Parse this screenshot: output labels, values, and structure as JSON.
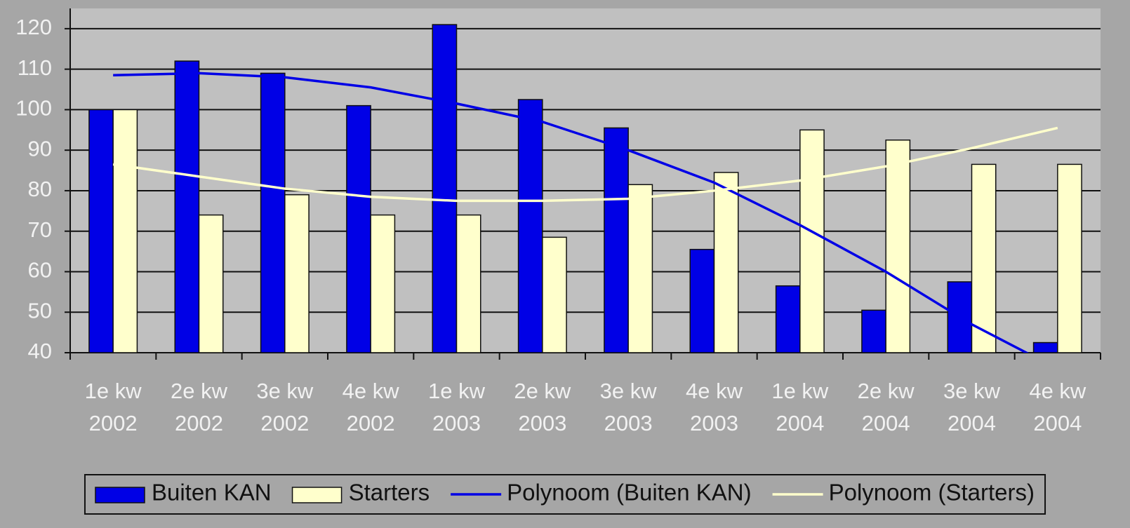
{
  "chart_data": {
    "type": "bar",
    "categories": [
      [
        "1e kw",
        "2002"
      ],
      [
        "2e kw",
        "2002"
      ],
      [
        "3e kw",
        "2002"
      ],
      [
        "4e kw",
        "2002"
      ],
      [
        "1e kw",
        "2003"
      ],
      [
        "2e kw",
        "2003"
      ],
      [
        "3e kw",
        "2003"
      ],
      [
        "4e kw",
        "2003"
      ],
      [
        "1e kw",
        "2004"
      ],
      [
        "2e kw",
        "2004"
      ],
      [
        "3e kw",
        "2004"
      ],
      [
        "4e kw",
        "2004"
      ]
    ],
    "series": [
      {
        "name": "Buiten KAN",
        "type": "bar",
        "color": "#0000e6",
        "values": [
          100,
          112,
          109,
          101,
          121,
          102.5,
          95.5,
          65.5,
          56.5,
          50.5,
          57.5,
          42.5
        ]
      },
      {
        "name": "Starters",
        "type": "bar",
        "color": "#ffffcc",
        "values": [
          100,
          74,
          79,
          74,
          74,
          68.5,
          81.5,
          84.5,
          95,
          92.5,
          86.5,
          86.5
        ]
      },
      {
        "name": "Polynoom (Buiten KAN)",
        "type": "line",
        "color": "#0000e6",
        "values": [
          108.5,
          109,
          108,
          105.5,
          101.5,
          97,
          90,
          82,
          71.5,
          60,
          47,
          36
        ]
      },
      {
        "name": "Polynoom (Starters)",
        "type": "line",
        "color": "#ffffcc",
        "values": [
          86.5,
          83.5,
          80.5,
          78.5,
          77.5,
          77.5,
          78,
          80,
          82.5,
          86,
          90.5,
          95.5
        ]
      }
    ],
    "ylim": [
      40,
      125
    ],
    "yticks": [
      40,
      50,
      60,
      70,
      80,
      90,
      100,
      110,
      120
    ],
    "grid": true,
    "legend": "bottom",
    "plot_background": "#c0c0c0"
  }
}
